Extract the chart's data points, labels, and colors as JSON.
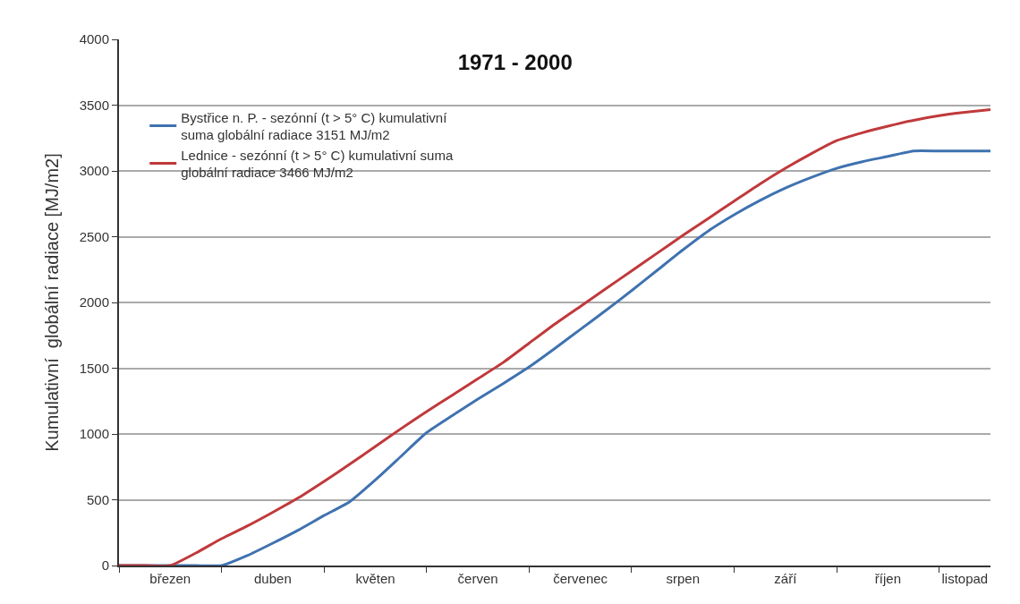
{
  "chart_data": {
    "type": "line",
    "title": "1971 - 2000",
    "ylabel": "Kumulativní  globální radiace [MJ/m2]",
    "categories": [
      null,
      null,
      "březen",
      null,
      null,
      null,
      "duben",
      null,
      null,
      null,
      "květen",
      null,
      null,
      null,
      "červen",
      null,
      null,
      null,
      "červenec",
      null,
      null,
      null,
      "srpen",
      null,
      null,
      null,
      "září",
      null,
      null,
      null,
      "říjen",
      null,
      null,
      "listopad",
      null
    ],
    "ylim": [
      0,
      4000
    ],
    "yticks": [
      0,
      500,
      1000,
      1500,
      2000,
      2500,
      3000,
      3500,
      4000
    ],
    "grid": "y",
    "legend": "top left",
    "marker": "none",
    "line_style": "solid",
    "series": [
      {
        "name": "Bystřice n. P. - sezónní (t > 5° C) kumulativní suma globální radiace 3151 MJ/m2",
        "color": "#3f72b0",
        "values": [
          0,
          0,
          0,
          0,
          0,
          75,
          170,
          270,
          380,
          485,
          650,
          830,
          1010,
          1140,
          1265,
          1385,
          1510,
          1650,
          1795,
          1940,
          2090,
          2245,
          2400,
          2545,
          2667,
          2775,
          2870,
          2950,
          3020,
          3070,
          3110,
          3151,
          3151,
          3151,
          3151
        ]
      },
      {
        "name": "Lednice - sezónní (t > 5° C) kumulativní suma globální radiace 3466 MJ/m2",
        "color": "#c0393b",
        "values": [
          0,
          0,
          0,
          95,
          204,
          300,
          405,
          515,
          640,
          770,
          905,
          1040,
          1170,
          1295,
          1420,
          1545,
          1690,
          1835,
          1970,
          2105,
          2240,
          2375,
          2510,
          2640,
          2770,
          2900,
          3020,
          3130,
          3230,
          3290,
          3340,
          3385,
          3420,
          3445,
          3466
        ]
      }
    ]
  }
}
